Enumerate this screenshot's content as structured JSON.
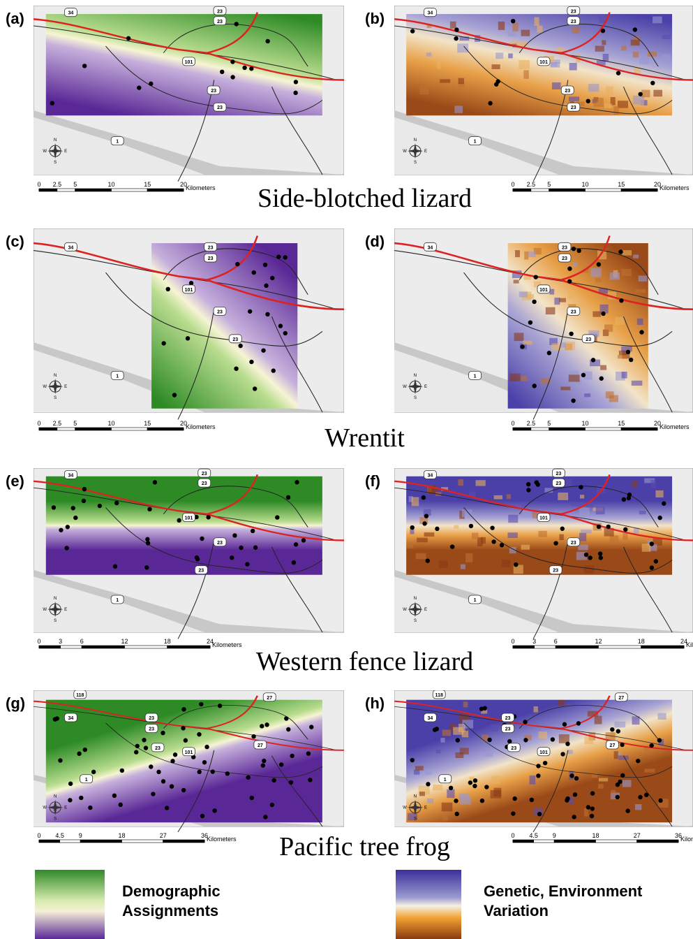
{
  "rows": [
    {
      "species": "Side-blotched lizard",
      "panels": [
        "(a)",
        "(b)"
      ],
      "highways": [
        "34",
        "23",
        "23",
        "101",
        "23",
        "23",
        "1"
      ],
      "scale": {
        "ticks": [
          0,
          2.5,
          5,
          10,
          15,
          20
        ],
        "unit": "Kilometers"
      }
    },
    {
      "species": "Wrentit",
      "panels": [
        "(c)",
        "(d)"
      ],
      "highways": [
        "34",
        "23",
        "23",
        "101",
        "23",
        "23",
        "1"
      ],
      "scale": {
        "ticks": [
          0,
          2.5,
          5,
          10,
          15,
          20
        ],
        "unit": "Kilometers"
      }
    },
    {
      "species": "Western fence lizard",
      "panels": [
        "(e)",
        "(f)"
      ],
      "highways": [
        "34",
        "23",
        "23",
        "101",
        "23",
        "23",
        "1"
      ],
      "scale": {
        "ticks": [
          0,
          3,
          6,
          12,
          18,
          24
        ],
        "unit": "Kilometers"
      }
    },
    {
      "species": "Pacific tree frog",
      "panels": [
        "(g)",
        "(h)"
      ],
      "highways": [
        "118",
        "34",
        "23",
        "23",
        "101",
        "23",
        "27",
        "27",
        "1"
      ],
      "scale": {
        "ticks": [
          0,
          4.5,
          9,
          18,
          27,
          36
        ],
        "unit": "Kilometers"
      }
    }
  ],
  "compass": [
    "N",
    "W",
    "E",
    "S"
  ],
  "legend": [
    "Demographic Assignments",
    "Genetic, Environment Variation"
  ]
}
